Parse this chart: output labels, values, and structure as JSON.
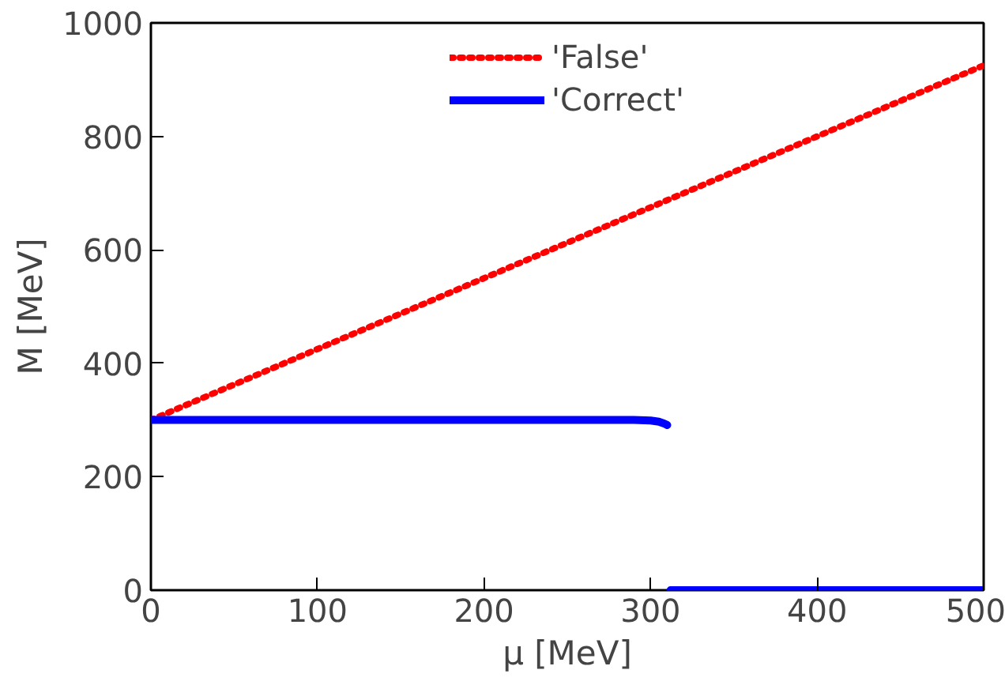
{
  "chart_data": {
    "type": "line",
    "xlabel": "μ [MeV]",
    "ylabel": "M [MeV]",
    "xlim": [
      0,
      500
    ],
    "ylim": [
      0,
      1000
    ],
    "xticks": [
      0,
      100,
      200,
      300,
      400,
      500
    ],
    "yticks": [
      0,
      200,
      400,
      600,
      800,
      1000
    ],
    "grid": false,
    "legend": "top",
    "marker": "none",
    "series": [
      {
        "name": "'False'",
        "color": "#ff0000",
        "line_style": "dotted",
        "x": [
          0,
          500
        ],
        "values": [
          300,
          925
        ]
      },
      {
        "name": "'Correct'",
        "color": "#0000ff",
        "line_style": "solid",
        "x": [
          0,
          290,
          300,
          305,
          308,
          310,
          311,
          312,
          500
        ],
        "values": [
          300,
          300,
          299,
          297,
          294,
          291,
          null,
          0,
          0
        ]
      }
    ]
  }
}
